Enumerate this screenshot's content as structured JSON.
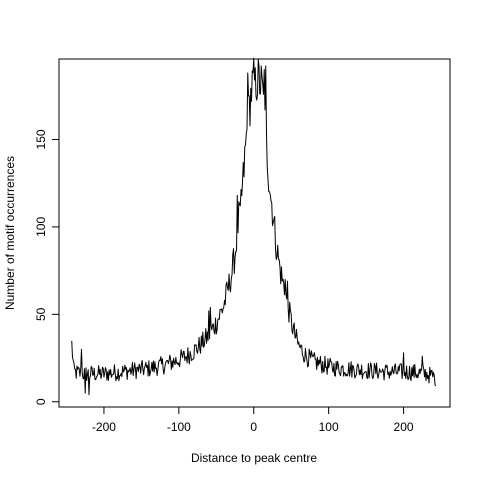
{
  "chart_data": {
    "type": "line",
    "title": "",
    "xlabel": "Distance to peak centre",
    "ylabel": "Number of motif occurrences",
    "xlim": [
      -260,
      262
    ],
    "ylim": [
      -3,
      196
    ],
    "xticks": [
      -200,
      -100,
      0,
      100,
      200
    ],
    "yticks": [
      0,
      50,
      100,
      150
    ],
    "xtick_labels": [
      "-200",
      "-100",
      "0",
      "100",
      "200"
    ],
    "ytick_labels": [
      "0",
      "50",
      "100",
      "150"
    ],
    "grid": false,
    "legend": null,
    "line_color": "#000000",
    "x_start": -243,
    "x_end": 243,
    "x_step": 1,
    "profile": [
      [
        -243,
        33
      ],
      [
        -240,
        17
      ],
      [
        -230,
        16
      ],
      [
        -220,
        16
      ],
      [
        -200,
        16
      ],
      [
        -180,
        17
      ],
      [
        -160,
        18
      ],
      [
        -140,
        19
      ],
      [
        -120,
        21
      ],
      [
        -100,
        24
      ],
      [
        -90,
        26
      ],
      [
        -80,
        29
      ],
      [
        -70,
        33
      ],
      [
        -60,
        38
      ],
      [
        -50,
        45
      ],
      [
        -40,
        55
      ],
      [
        -30,
        72
      ],
      [
        -25,
        84
      ],
      [
        -20,
        105
      ],
      [
        -15,
        122
      ],
      [
        -10,
        150
      ],
      [
        -6,
        168
      ],
      [
        -3,
        178
      ],
      [
        0,
        183
      ],
      [
        5,
        184
      ],
      [
        8,
        183
      ],
      [
        12,
        176
      ],
      [
        15,
        158
      ],
      [
        20,
        130
      ],
      [
        25,
        110
      ],
      [
        30,
        90
      ],
      [
        35,
        76
      ],
      [
        40,
        66
      ],
      [
        45,
        56
      ],
      [
        50,
        46
      ],
      [
        55,
        38
      ],
      [
        60,
        32
      ],
      [
        70,
        26
      ],
      [
        80,
        23
      ],
      [
        100,
        20
      ],
      [
        120,
        19
      ],
      [
        150,
        18
      ],
      [
        180,
        17
      ],
      [
        210,
        17
      ],
      [
        230,
        16
      ],
      [
        243,
        14
      ]
    ],
    "noise_amplitude": 4,
    "noise_relative": 0.06,
    "spikes": [
      [
        -230,
        30
      ],
      [
        -225,
        5
      ],
      [
        -220,
        4
      ],
      [
        -22,
        118
      ],
      [
        -18,
        112
      ],
      [
        10,
        192
      ],
      [
        14,
        190
      ],
      [
        2,
        191
      ],
      [
        -8,
        188
      ],
      [
        16,
        192
      ],
      [
        23,
        115
      ],
      [
        42,
        70
      ],
      [
        45,
        69
      ],
      [
        -60,
        52
      ],
      [
        -58,
        54
      ],
      [
        200,
        28
      ],
      [
        225,
        26
      ],
      [
        243,
        9
      ]
    ]
  }
}
